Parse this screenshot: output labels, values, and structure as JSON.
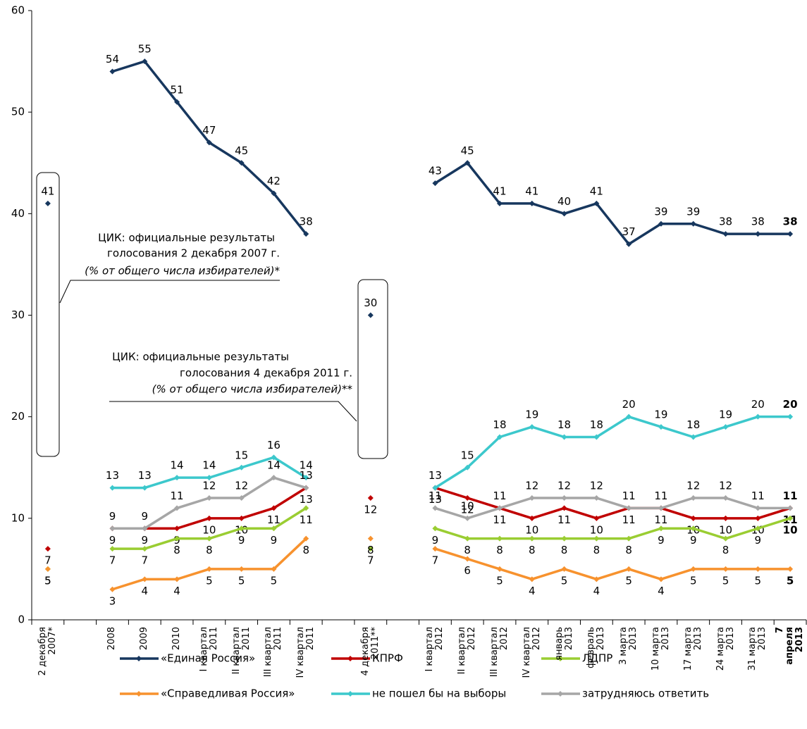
{
  "chart_data": {
    "type": "line",
    "categories": [
      "2 декабря\n2007*",
      null,
      "2008",
      "2009",
      "2010",
      "I квартал\n2011",
      "II квартал\n2011",
      "III квартал\n2011",
      "IV квартал\n2011",
      null,
      "4 декабря\n2011**",
      null,
      "I квартал\n2012",
      "II квартал\n2012",
      "III квартал\n2012",
      "IV квартал\n2012",
      "январь\n2013",
      "февраль\n2013",
      "3 марта\n2013",
      "10 марта\n2013",
      "17 марта\n2013",
      "24 марта\n2013",
      "31 марта\n2013",
      "7 апреля\n2013"
    ],
    "series": [
      {
        "name": "«Единая Россия»",
        "color": "#17375e",
        "values": [
          41,
          null,
          54,
          55,
          51,
          47,
          45,
          42,
          38,
          null,
          30,
          null,
          43,
          45,
          41,
          41,
          40,
          41,
          37,
          39,
          39,
          38,
          38,
          38
        ]
      },
      {
        "name": "КПРФ",
        "color": "#c00000",
        "values": [
          7,
          null,
          9,
          9,
          9,
          10,
          10,
          11,
          13,
          null,
          12,
          null,
          13,
          12,
          11,
          10,
          11,
          10,
          11,
          11,
          10,
          10,
          10,
          11
        ]
      },
      {
        "name": "ЛДПР",
        "color": "#9acd32",
        "values": [
          5,
          null,
          7,
          7,
          8,
          8,
          9,
          9,
          11,
          null,
          7,
          null,
          9,
          8,
          8,
          8,
          8,
          8,
          8,
          9,
          9,
          8,
          9,
          10
        ]
      },
      {
        "name": "«Справедливая Россия»",
        "color": "#f7922e",
        "values": [
          5,
          null,
          3,
          4,
          4,
          5,
          5,
          5,
          8,
          null,
          8,
          null,
          7,
          6,
          5,
          4,
          5,
          4,
          5,
          4,
          5,
          5,
          5,
          5
        ]
      },
      {
        "name": "не пошел бы на выборы",
        "color": "#3cc8cc",
        "values": [
          null,
          null,
          13,
          13,
          14,
          14,
          15,
          16,
          14,
          null,
          null,
          null,
          13,
          15,
          18,
          19,
          18,
          18,
          20,
          19,
          18,
          19,
          20,
          20
        ]
      },
      {
        "name": "затрудняюсь ответить",
        "color": "#a6a6a6",
        "values": [
          null,
          null,
          9,
          9,
          11,
          12,
          12,
          14,
          13,
          null,
          null,
          null,
          11,
          10,
          11,
          12,
          12,
          12,
          11,
          11,
          12,
          12,
          11,
          11
        ]
      }
    ],
    "annotations": [
      [
        "ЦИК: официальные результаты",
        "голосования 2 декабря 2007 г.",
        "(% от общего числа избирателей)*"
      ],
      [
        "ЦИК: официальные результаты",
        "голосования 4 декабря 2011 г.",
        "(% от общего числа избирателей)**"
      ]
    ],
    "ylim": [
      0,
      60
    ],
    "yticks": [
      0,
      10,
      20,
      30,
      40,
      50,
      60
    ]
  }
}
